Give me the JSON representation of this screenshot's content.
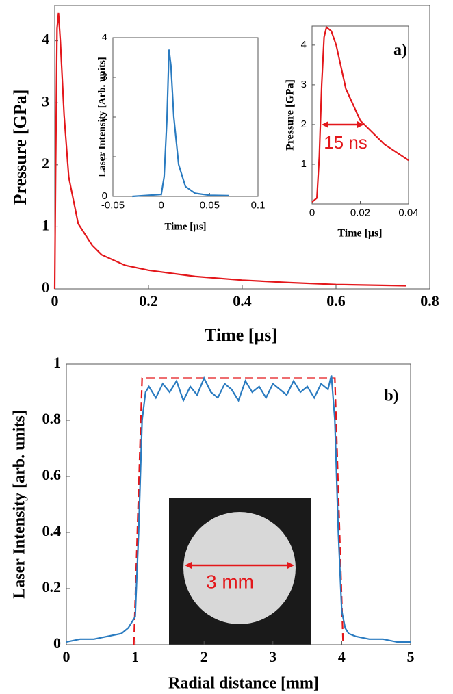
{
  "chart_data": [
    {
      "type": "line",
      "x_label": "Time [μs]",
      "y_label": "Pressure [GPa]",
      "annotation": "a)",
      "xlim": [
        0,
        0.8
      ],
      "xticks": [
        0,
        0.2,
        0.4,
        0.6,
        0.8
      ],
      "ylim": [
        0,
        4.57
      ],
      "yticks": [
        0,
        1,
        2,
        3,
        4
      ],
      "series": [
        {
          "color": "#e3171b",
          "x": [
            0,
            0.002,
            0.005,
            0.008,
            0.012,
            0.02,
            0.03,
            0.05,
            0.08,
            0.1,
            0.15,
            0.2,
            0.3,
            0.4,
            0.5,
            0.6,
            0.75
          ],
          "values": [
            0,
            2,
            4.2,
            4.45,
            4.0,
            2.8,
            1.8,
            1.05,
            0.7,
            0.55,
            0.38,
            0.3,
            0.2,
            0.14,
            0.1,
            0.07,
            0.05
          ]
        }
      ]
    },
    {
      "type": "line",
      "x_label": "Time [μs]",
      "y_label": "Laser Intensity [Arb. units]",
      "xlim": [
        -0.05,
        0.1
      ],
      "xticks": [
        -0.05,
        0,
        0.05,
        0.1
      ],
      "ylim": [
        0,
        4
      ],
      "yticks": [
        0,
        1,
        2,
        3,
        4
      ],
      "series": [
        {
          "color": "#2a7bc0",
          "x": [
            -0.03,
            0,
            0.003,
            0.006,
            0.008,
            0.01,
            0.013,
            0.018,
            0.025,
            0.035,
            0.05,
            0.07
          ],
          "values": [
            0,
            0.05,
            0.5,
            2,
            3.7,
            3.3,
            2,
            0.8,
            0.25,
            0.08,
            0.03,
            0.02
          ]
        }
      ]
    },
    {
      "type": "line",
      "x_label": "Time [μs]",
      "y_label": "Pressure [GPa]",
      "annotation": "15 ns",
      "xlim": [
        0,
        0.04
      ],
      "xticks": [
        0,
        0.02,
        0.04
      ],
      "ylim": [
        0,
        4.48
      ],
      "yticks": [
        1,
        2,
        3,
        4
      ],
      "series": [
        {
          "color": "#e3171b",
          "x": [
            0,
            0.002,
            0.003,
            0.004,
            0.005,
            0.006,
            0.008,
            0.01,
            0.014,
            0.02,
            0.03,
            0.04
          ],
          "values": [
            0.05,
            0.15,
            1.2,
            3.0,
            4.2,
            4.45,
            4.35,
            4.0,
            2.9,
            2.1,
            1.5,
            1.1
          ]
        }
      ]
    },
    {
      "type": "line",
      "x_label": "Radial distance [mm]",
      "y_label": "Laser Intensity [arb. units]",
      "annotation": "b)",
      "inset_label": "3 mm",
      "xlim": [
        0,
        5
      ],
      "xticks": [
        0,
        1,
        2,
        3,
        4,
        5
      ],
      "ylim": [
        0,
        1
      ],
      "yticks": [
        0,
        0.2,
        0.4,
        0.6,
        0.8,
        1
      ],
      "series": [
        {
          "color": "#e3171b",
          "linestyle": "dashed",
          "x": [
            0.98,
            1.1,
            3.9,
            4.02
          ],
          "values": [
            0,
            0.95,
            0.95,
            0
          ]
        },
        {
          "color": "#2a7bc0",
          "x": [
            0,
            0.2,
            0.4,
            0.6,
            0.8,
            0.9,
            1.0,
            1.05,
            1.1,
            1.15,
            1.2,
            1.3,
            1.4,
            1.5,
            1.6,
            1.7,
            1.8,
            1.9,
            2.0,
            2.1,
            2.2,
            2.3,
            2.4,
            2.5,
            2.6,
            2.7,
            2.8,
            2.9,
            3.0,
            3.1,
            3.2,
            3.3,
            3.4,
            3.5,
            3.6,
            3.7,
            3.8,
            3.85,
            3.9,
            3.95,
            4.0,
            4.05,
            4.1,
            4.2,
            4.4,
            4.6,
            4.8,
            5.0
          ],
          "values": [
            0.01,
            0.02,
            0.02,
            0.03,
            0.04,
            0.06,
            0.1,
            0.4,
            0.8,
            0.9,
            0.92,
            0.88,
            0.93,
            0.9,
            0.94,
            0.87,
            0.92,
            0.89,
            0.95,
            0.9,
            0.88,
            0.93,
            0.91,
            0.87,
            0.94,
            0.9,
            0.92,
            0.88,
            0.93,
            0.91,
            0.89,
            0.94,
            0.9,
            0.92,
            0.88,
            0.93,
            0.91,
            0.96,
            0.8,
            0.4,
            0.12,
            0.06,
            0.04,
            0.03,
            0.02,
            0.02,
            0.01,
            0.01
          ]
        }
      ]
    }
  ]
}
